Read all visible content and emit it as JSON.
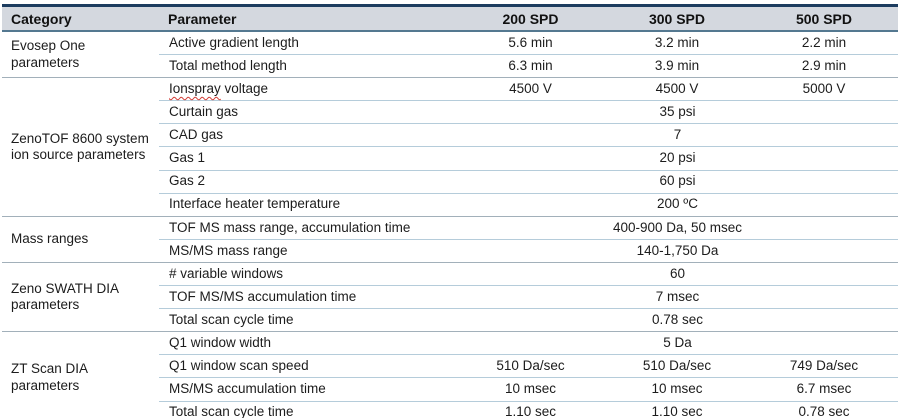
{
  "table": {
    "columns": [
      {
        "label": "Category",
        "align": "left"
      },
      {
        "label": "Parameter",
        "align": "left"
      },
      {
        "label": "200 SPD",
        "align": "center"
      },
      {
        "label": "300 SPD",
        "align": "center"
      },
      {
        "label": "500 SPD",
        "align": "center"
      }
    ],
    "groups": [
      {
        "category": "Evosep One parameters",
        "rows": [
          {
            "parameter": "Active gradient length",
            "values": [
              "5.6 min",
              "3.2 min",
              "2.2 min"
            ]
          },
          {
            "parameter": "Total method length",
            "values": [
              "6.3 min",
              "3.9 min",
              "2.9 min"
            ]
          }
        ]
      },
      {
        "category": "ZenoTOF 8600 system ion source parameters",
        "rows": [
          {
            "parameter": "Ionspray voltage",
            "misspelled_word": "Ionspray",
            "values": [
              "4500 V",
              "4500 V",
              "5000 V"
            ]
          },
          {
            "parameter": "Curtain gas",
            "span_value": "35 psi"
          },
          {
            "parameter": "CAD gas",
            "span_value": "7"
          },
          {
            "parameter": "Gas 1",
            "span_value": "20 psi"
          },
          {
            "parameter": "Gas 2",
            "span_value": "60 psi"
          },
          {
            "parameter": "Interface heater temperature",
            "span_value": "200 ºC"
          }
        ]
      },
      {
        "category": "Mass ranges",
        "rows": [
          {
            "parameter": "TOF MS mass range, accumulation time",
            "span_value": "400-900 Da, 50 msec"
          },
          {
            "parameter": "MS/MS mass range",
            "span_value": "140-1,750 Da"
          }
        ]
      },
      {
        "category": "Zeno SWATH DIA parameters",
        "rows": [
          {
            "parameter": "# variable windows",
            "span_value": "60"
          },
          {
            "parameter": "TOF MS/MS accumulation time",
            "span_value": "7 msec"
          },
          {
            "parameter": "Total scan cycle time",
            "span_value": "0.78 sec"
          }
        ]
      },
      {
        "category": "ZT Scan DIA parameters",
        "rows": [
          {
            "parameter": "Q1 window width",
            "span_value": "5 Da"
          },
          {
            "parameter": "Q1 window scan speed",
            "values": [
              "510 Da/sec",
              "510 Da/sec",
              "749 Da/sec"
            ]
          },
          {
            "parameter": "MS/MS accumulation time",
            "values": [
              "10 msec",
              "10 msec",
              "6.7 msec"
            ]
          },
          {
            "parameter": "Total scan cycle time",
            "values": [
              "1.10 sec",
              "1.10 sec",
              "0.78 sec"
            ]
          }
        ]
      }
    ],
    "colors": {
      "header_bg": "#d4d8df",
      "top_rule": "#1d3c5f",
      "header_rule": "#547890",
      "row_separator": "#b5ccda",
      "group_separator": "#a2b0ba",
      "bottom_rule": "#4a7da0",
      "text": "#1c1c1c",
      "spellcheck_squiggle": "#d23b34"
    }
  }
}
